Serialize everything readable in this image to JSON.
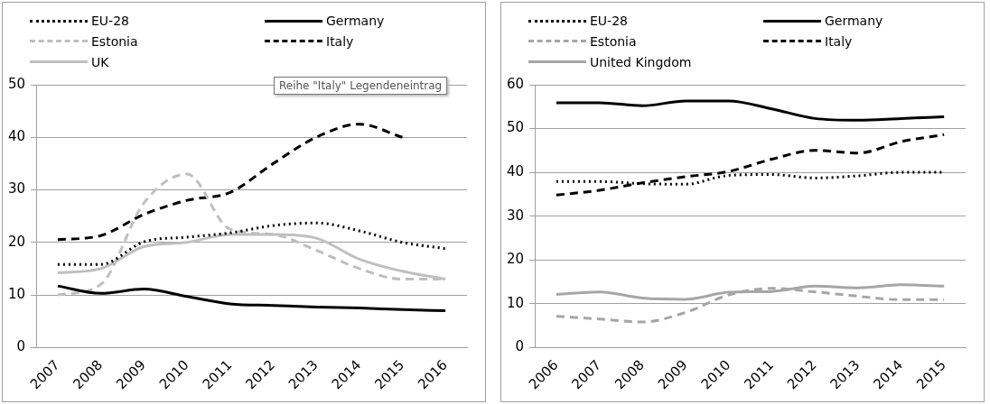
{
  "chart_data": [
    {
      "type": "line",
      "categories": [
        "2007",
        "2008",
        "2009",
        "2010",
        "2011",
        "2012",
        "2013",
        "2014",
        "2015",
        "2016"
      ],
      "ylim": [
        0,
        50
      ],
      "yticks": [
        0,
        10,
        20,
        30,
        40,
        50
      ],
      "grid": "y",
      "legend": "top",
      "marker": "none",
      "annotations": [
        "Reihe \"Italy\" Legendeneintrag"
      ],
      "series": [
        {
          "name": "EU-28",
          "color": "#000000",
          "line_style": "dotted",
          "values": [
            15.8,
            15.8,
            20.1,
            21,
            21.8,
            23.2,
            23.7,
            22.2,
            20,
            18.8
          ]
        },
        {
          "name": "Germany",
          "color": "#000000",
          "line_style": "solid",
          "values": [
            11.7,
            10.3,
            11.1,
            9.7,
            8.3,
            8,
            7.7,
            7.5,
            7.2,
            7
          ]
        },
        {
          "name": "Estonia",
          "color": "#bfbfbf",
          "line_style": "dashed",
          "values": [
            10,
            12,
            27.5,
            33,
            22.5,
            21.5,
            18.5,
            15,
            13,
            13
          ]
        },
        {
          "name": "Italy",
          "color": "#000000",
          "line_style": "dashed",
          "values": [
            20.5,
            21.3,
            25.3,
            28,
            29.5,
            35,
            40,
            42.5,
            40,
            null
          ]
        },
        {
          "name": "UK",
          "color": "#bfbfbf",
          "line_style": "solid",
          "values": [
            14.2,
            15,
            19.2,
            20,
            21.5,
            21.5,
            20.8,
            16.8,
            14.5,
            13
          ]
        }
      ]
    },
    {
      "type": "line",
      "categories": [
        "2006",
        "2007",
        "2008",
        "2009",
        "2010",
        "2011",
        "2012",
        "2013",
        "2014",
        "2015"
      ],
      "ylim": [
        0,
        60
      ],
      "yticks": [
        0,
        10,
        20,
        30,
        40,
        50,
        60
      ],
      "grid": "y",
      "legend": "top",
      "marker": "none",
      "series": [
        {
          "name": "EU-28",
          "color": "#000000",
          "line_style": "dotted",
          "values": [
            37.9,
            37.9,
            37.4,
            37.3,
            39.3,
            39.5,
            38.7,
            39.2,
            40,
            40
          ]
        },
        {
          "name": "Germany",
          "color": "#000000",
          "line_style": "solid",
          "values": [
            55.9,
            55.9,
            55.2,
            56.3,
            56.3,
            54.5,
            52.3,
            51.9,
            52.3,
            52.7
          ]
        },
        {
          "name": "Estonia",
          "color": "#a6a6a6",
          "line_style": "dashed",
          "values": [
            7.1,
            6.5,
            5.8,
            8,
            12,
            13.5,
            12.7,
            11.7,
            10.9,
            10.9
          ]
        },
        {
          "name": "Italy",
          "color": "#000000",
          "line_style": "dashed",
          "values": [
            34.8,
            35.9,
            37.6,
            39,
            40.2,
            43,
            45,
            44.4,
            47,
            48.6
          ]
        },
        {
          "name": "United Kingdom",
          "color": "#a6a6a6",
          "line_style": "solid",
          "values": [
            12.1,
            12.7,
            11.3,
            11,
            12.6,
            12.8,
            14,
            13.6,
            14.3,
            14
          ]
        }
      ]
    }
  ]
}
